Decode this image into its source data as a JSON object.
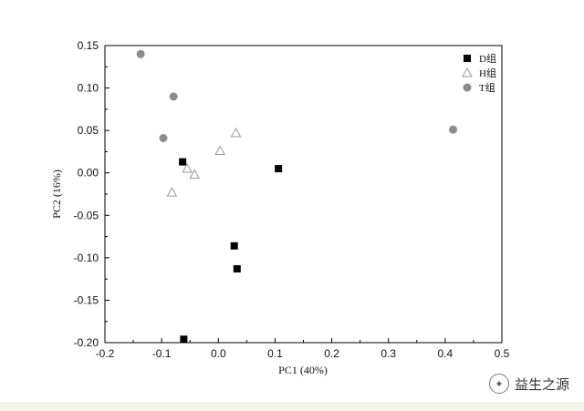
{
  "chart_data": {
    "type": "scatter",
    "title": "",
    "xlabel": "PC1 (40%)",
    "ylabel": "PC2 (16%)",
    "xlim": [
      -0.2,
      0.5
    ],
    "ylim": [
      -0.2,
      0.15
    ],
    "x_ticks": [
      "-0.2",
      "-0.1",
      "0.0",
      "0.1",
      "0.2",
      "0.3",
      "0.4",
      "0.5"
    ],
    "y_ticks": [
      "0.15",
      "0.10",
      "0.05",
      "0.00",
      "-0.05",
      "-0.10",
      "-0.15",
      "-0.20"
    ],
    "grid": false,
    "legend_position": "top-right",
    "series": [
      {
        "name": "D组",
        "marker": "square",
        "color": "#000000",
        "points": [
          [
            -0.063,
            0.013
          ],
          [
            0.106,
            0.005
          ],
          [
            0.028,
            -0.086
          ],
          [
            0.033,
            -0.113
          ],
          [
            -0.061,
            -0.196
          ]
        ]
      },
      {
        "name": "H组",
        "marker": "open-triangle",
        "color": "#999999",
        "points": [
          [
            0.031,
            0.047
          ],
          [
            0.003,
            0.026
          ],
          [
            -0.055,
            0.005
          ],
          [
            -0.042,
            -0.002
          ],
          [
            -0.082,
            -0.023
          ]
        ]
      },
      {
        "name": "T组",
        "marker": "circle",
        "color": "#8c8c8c",
        "points": [
          [
            -0.137,
            0.14
          ],
          [
            -0.079,
            0.09
          ],
          [
            -0.097,
            0.041
          ],
          [
            0.414,
            0.051
          ]
        ]
      }
    ]
  },
  "watermark": {
    "icon": "wechat-channel-icon",
    "text": "益生之源"
  }
}
